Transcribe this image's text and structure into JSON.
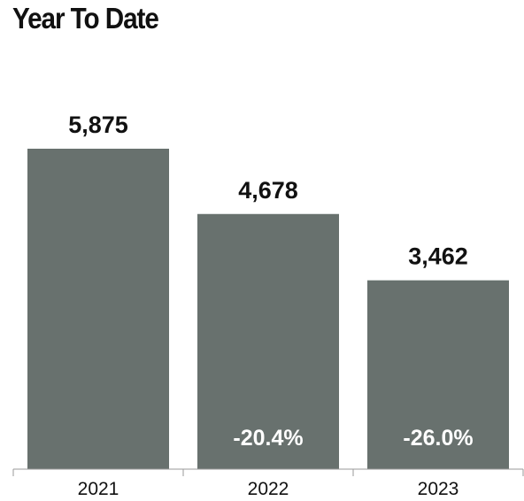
{
  "chart_data": {
    "type": "bar",
    "title": "Year To Date",
    "categories": [
      "2021",
      "2022",
      "2023"
    ],
    "values": [
      5875,
      4678,
      3462
    ],
    "value_labels": [
      "5,875",
      "4,678",
      "3,462"
    ],
    "change_labels": [
      "",
      "-20.4%",
      "-26.0%"
    ],
    "bar_color": "#68716e",
    "ylim": [
      0,
      5875
    ],
    "grid": false,
    "legend": "none"
  }
}
